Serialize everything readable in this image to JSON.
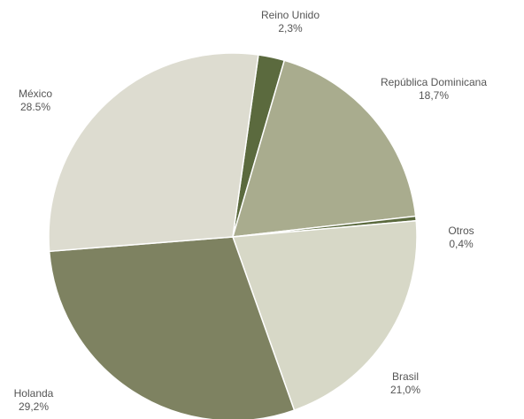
{
  "chart_data": {
    "type": "pie",
    "categories": [
      "Reino Unido",
      "República Dominicana",
      "Otros",
      "Brasil",
      "Holanda",
      "México"
    ],
    "values": [
      2.3,
      18.7,
      0.4,
      21.0,
      29.2,
      28.5
    ],
    "value_labels": [
      "2,3%",
      "18,7%",
      "0,4%",
      "21,0%",
      "29,2%",
      "28.5%"
    ],
    "colors": [
      "#5b6a3e",
      "#a9ac8e",
      "#5b6a3e",
      "#d7d8c7",
      "#7e8261",
      "#dddcd0"
    ]
  }
}
